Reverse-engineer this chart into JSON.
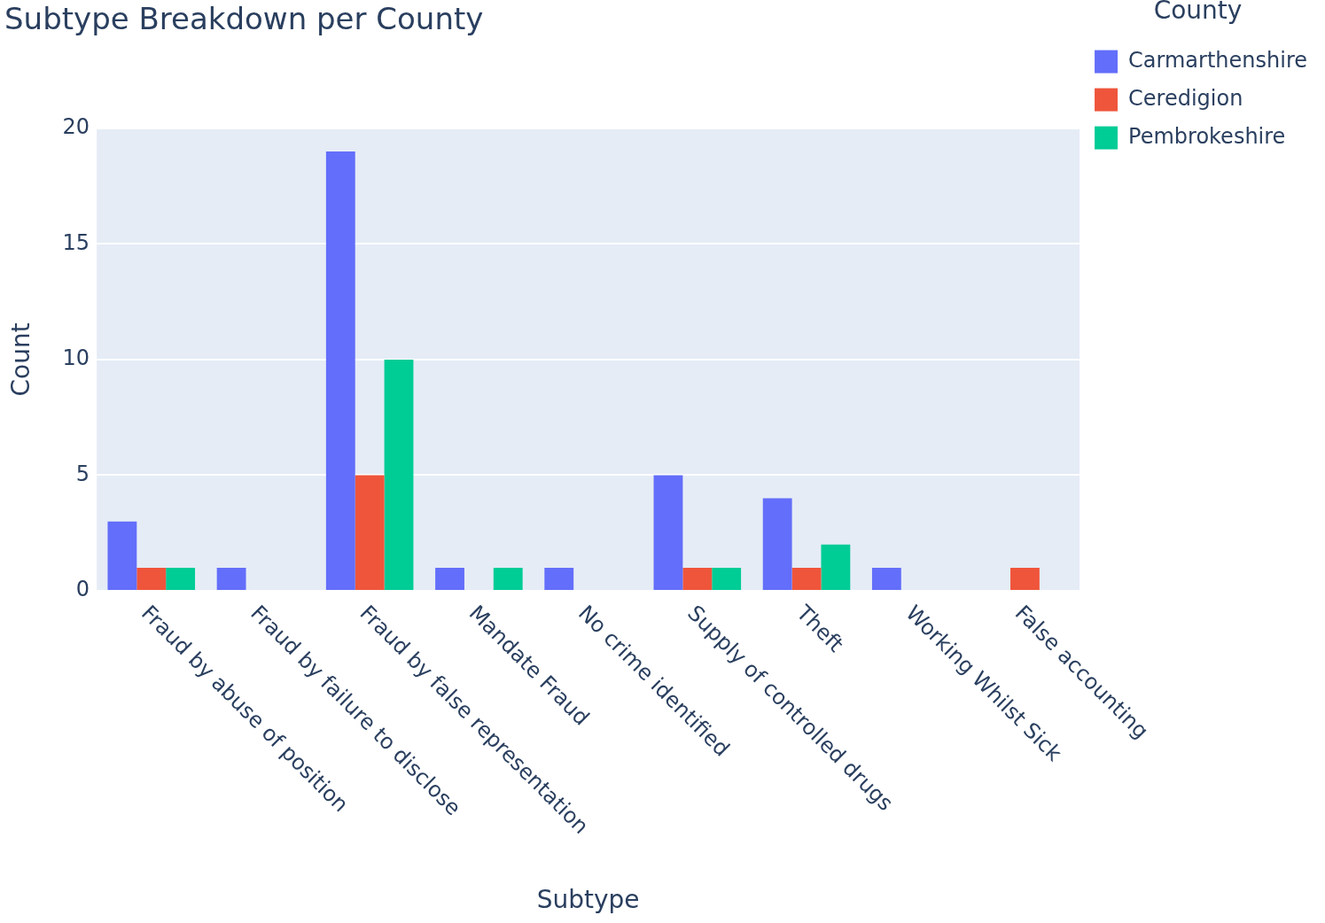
{
  "chart_data": {
    "type": "bar",
    "title": "Subtype Breakdown per County",
    "xlabel": "Subtype",
    "ylabel": "Count",
    "legend_title": "County",
    "categories": [
      "Fraud by abuse of position",
      "Fraud by failure to disclose",
      "Fraud by false representation",
      "Mandate Fraud",
      "No crime identified",
      "Supply of controlled drugs",
      "Theft",
      "Working Whilst Sick",
      "False accounting"
    ],
    "series": [
      {
        "name": "Carmarthenshire",
        "color": "#636efa",
        "values": [
          3,
          1,
          19,
          1,
          1,
          5,
          4,
          1,
          null
        ]
      },
      {
        "name": "Ceredigion",
        "color": "#ef553b",
        "values": [
          1,
          null,
          5,
          null,
          null,
          1,
          1,
          null,
          1
        ]
      },
      {
        "name": "Pembrokeshire",
        "color": "#00cc96",
        "values": [
          1,
          null,
          10,
          1,
          null,
          1,
          2,
          null,
          null
        ]
      }
    ],
    "ylim": [
      0,
      20
    ],
    "yticks": [
      0,
      5,
      10,
      15,
      20
    ],
    "grid": "y",
    "legend": "top right"
  }
}
